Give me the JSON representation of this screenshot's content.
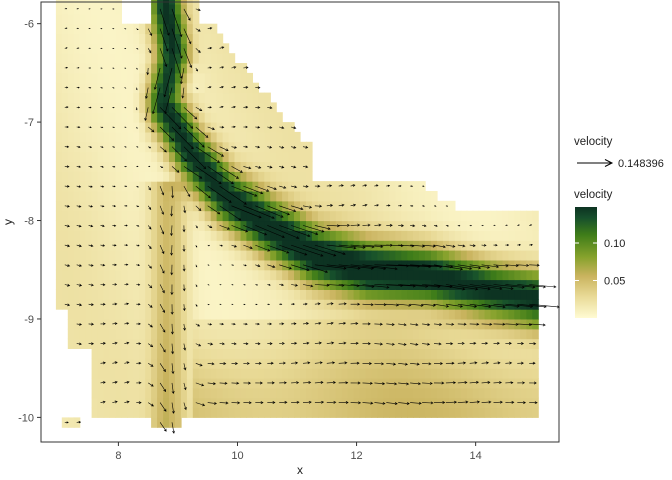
{
  "chart_data": {
    "type": "vector-field",
    "xlabel": "x",
    "ylabel": "y",
    "xlim": [
      6.7,
      15.4
    ],
    "ylim": [
      -10.25,
      -5.78
    ],
    "x_ticks": [
      8,
      10,
      12,
      14
    ],
    "y_ticks": [
      -6,
      -7,
      -8,
      -9,
      -10
    ],
    "grid": false,
    "legend_placement": "right",
    "legend_arrow": {
      "title": "velocity",
      "label": "0.148396",
      "value": 0.148396
    },
    "legend_fill": {
      "title": "velocity",
      "breaks": [
        0.05,
        0.1
      ],
      "break_labels": [
        "0.05",
        "0.10"
      ],
      "range": [
        0.0,
        0.148
      ]
    },
    "colors": {
      "low": "#fffbd3",
      "mid": "#d3bd6d",
      "green": "#7a9a16",
      "high": "#0d3a24",
      "arrow": "#000000",
      "panel_border": "#333333"
    },
    "jet": [
      [
        8.8,
        -5.8
      ],
      [
        8.92,
        -6.3
      ],
      [
        8.75,
        -6.8
      ],
      [
        9.2,
        -7.3
      ],
      [
        9.8,
        -7.75
      ],
      [
        10.5,
        -8.05
      ],
      [
        11.3,
        -8.35
      ],
      [
        12.2,
        -8.5
      ],
      [
        13.2,
        -8.55
      ],
      [
        14.2,
        -8.7
      ],
      [
        15.1,
        -8.8
      ]
    ],
    "wall_x": 8.85
  }
}
